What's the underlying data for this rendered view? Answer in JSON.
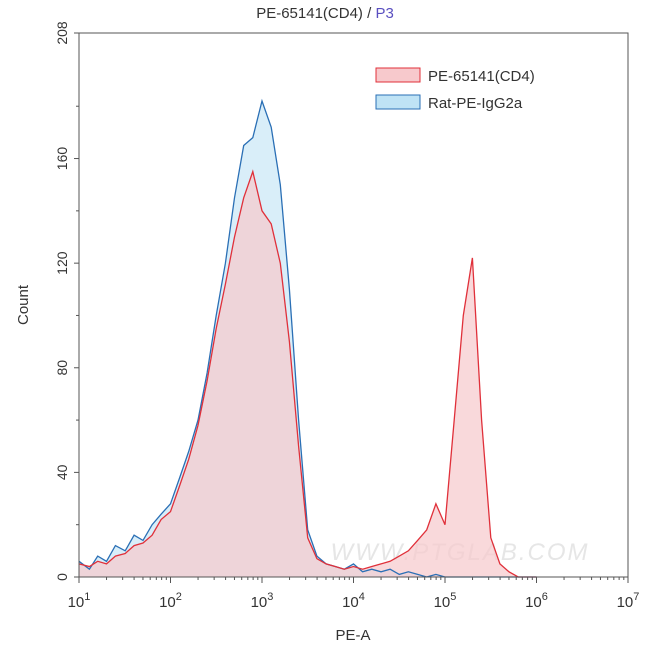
{
  "chart_data": {
    "type": "area",
    "title": "PE-65141(CD4)",
    "title_gate": "P3",
    "title_sep": " / ",
    "xlabel": "PE-A",
    "ylabel": "Count",
    "x_scale": "log",
    "xlim": [
      10,
      10000000
    ],
    "ylim": [
      0,
      208
    ],
    "x_tick_bases": [
      "10",
      "10",
      "10",
      "10",
      "10",
      "10",
      "10"
    ],
    "x_tick_exps": [
      "1",
      "2",
      "3",
      "4",
      "5",
      "6",
      "7"
    ],
    "y_ticks": [
      0,
      40,
      80,
      120,
      160,
      208
    ],
    "y_tick_labels": [
      "0",
      "40",
      "80",
      "120",
      "160",
      "208"
    ],
    "grid": false,
    "legend_position": "top-right",
    "watermark": "WWW.PTGLAB.COM",
    "x": [
      10,
      13,
      16,
      20,
      25,
      32,
      40,
      50,
      63,
      79,
      100,
      126,
      158,
      200,
      251,
      316,
      398,
      501,
      631,
      794,
      1000,
      1259,
      1585,
      1995,
      2512,
      3162,
      3981,
      5012,
      6310,
      7943,
      10000,
      12589,
      15849,
      19953,
      25119,
      31623,
      39811,
      50119,
      63096,
      79433,
      100000,
      125893,
      158489,
      199526,
      251189,
      316228,
      398107,
      501187,
      630957,
      794328,
      1000000
    ],
    "series": [
      {
        "name": "PE-65141(CD4)",
        "color": "#e0303a",
        "fill": "#f7c9cc",
        "values": [
          5,
          4,
          6,
          5,
          8,
          9,
          12,
          13,
          16,
          22,
          25,
          35,
          45,
          58,
          75,
          95,
          112,
          130,
          145,
          155,
          140,
          135,
          120,
          90,
          50,
          15,
          7,
          5,
          4,
          3,
          4,
          3,
          4,
          5,
          6,
          8,
          10,
          14,
          18,
          28,
          20,
          60,
          100,
          122,
          60,
          15,
          5,
          2,
          0,
          0,
          0
        ]
      },
      {
        "name": "Rat-PE-IgG2a",
        "color": "#2a6fb5",
        "fill": "#bfe3f5",
        "values": [
          6,
          3,
          8,
          6,
          12,
          10,
          16,
          14,
          20,
          24,
          28,
          38,
          48,
          60,
          78,
          100,
          120,
          145,
          165,
          168,
          182,
          172,
          150,
          110,
          60,
          18,
          8,
          5,
          4,
          3,
          5,
          2,
          3,
          2,
          3,
          1,
          2,
          1,
          0,
          1,
          0,
          0,
          0,
          0,
          0,
          0,
          0,
          0,
          0,
          0,
          0
        ]
      }
    ]
  }
}
